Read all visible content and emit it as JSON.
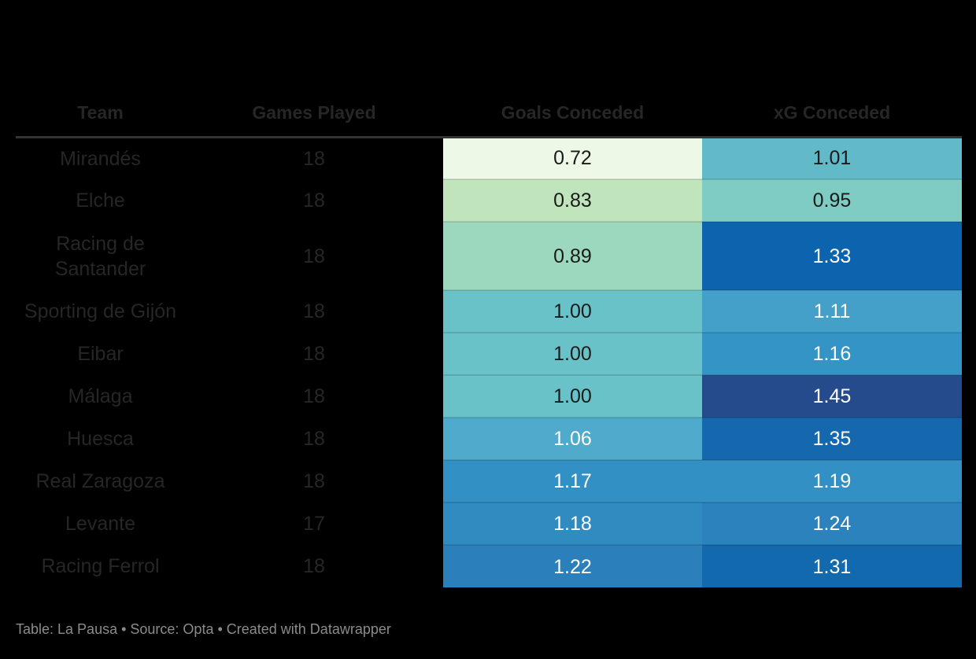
{
  "chart_data": {
    "type": "table",
    "title": "",
    "columns": [
      "Team",
      "Games Played",
      "Goals Conceded",
      "xG Conceded"
    ],
    "rows": [
      [
        "Mirandés",
        18,
        0.72,
        1.01
      ],
      [
        "Elche",
        18,
        0.83,
        0.95
      ],
      [
        "Racing de Santander",
        18,
        0.89,
        1.33
      ],
      [
        "Sporting de Gijón",
        18,
        1.0,
        1.11
      ],
      [
        "Eibar",
        18,
        1.0,
        1.16
      ],
      [
        "Málaga",
        18,
        1.0,
        1.45
      ],
      [
        "Huesca",
        18,
        1.06,
        1.35
      ],
      [
        "Real Zaragoza",
        18,
        1.17,
        1.19
      ],
      [
        "Levante",
        17,
        1.18,
        1.24
      ],
      [
        "Racing Ferrol",
        18,
        1.22,
        1.31
      ]
    ],
    "heatmap_columns": [
      "Goals Conceded",
      "xG Conceded"
    ],
    "layout_hints": "heatmap-colored table, green = low values, dark blue = high values; dark page background",
    "footer": "Table: La Pausa • Source: Opta • Created with Datawrapper"
  },
  "header": {
    "team": "Team",
    "games_played": "Games Played",
    "goals_conceded": "Goals Conceded",
    "xg_conceded": "xG Conceded"
  },
  "rows": [
    {
      "team": "Mirandés",
      "gp": "18",
      "goals": {
        "v": "0.72",
        "bg": "#edf8e6",
        "fg": "#1a1a1a"
      },
      "xg": {
        "v": "1.01",
        "bg": "#62b9c7",
        "fg": "#1a1a1a"
      }
    },
    {
      "team": "Elche",
      "gp": "18",
      "goals": {
        "v": "0.83",
        "bg": "#c0e5bc",
        "fg": "#1a1a1a"
      },
      "xg": {
        "v": "0.95",
        "bg": "#7eccc4",
        "fg": "#1a1a1a"
      }
    },
    {
      "team": "Racing de Santander",
      "gp": "18",
      "goals": {
        "v": "0.89",
        "bg": "#9cd8bd",
        "fg": "#1a1a1a"
      },
      "xg": {
        "v": "1.33",
        "bg": "#0b64ad",
        "fg": "#ffffff"
      }
    },
    {
      "team": "Sporting de Gijón",
      "gp": "18",
      "goals": {
        "v": "1.00",
        "bg": "#68c2c7",
        "fg": "#1a1a1a"
      },
      "xg": {
        "v": "1.11",
        "bg": "#449fc9",
        "fg": "#ffffff"
      }
    },
    {
      "team": "Eibar",
      "gp": "18",
      "goals": {
        "v": "1.00",
        "bg": "#68c2c7",
        "fg": "#1a1a1a"
      },
      "xg": {
        "v": "1.16",
        "bg": "#3594c6",
        "fg": "#ffffff"
      }
    },
    {
      "team": "Málaga",
      "gp": "18",
      "goals": {
        "v": "1.00",
        "bg": "#68c2c7",
        "fg": "#1a1a1a"
      },
      "xg": {
        "v": "1.45",
        "bg": "#264b8c",
        "fg": "#ffffff"
      }
    },
    {
      "team": "Huesca",
      "gp": "18",
      "goals": {
        "v": "1.06",
        "bg": "#4faacb",
        "fg": "#ffffff"
      },
      "xg": {
        "v": "1.35",
        "bg": "#1567ae",
        "fg": "#ffffff"
      }
    },
    {
      "team": "Real Zaragoza",
      "gp": "18",
      "goals": {
        "v": "1.17",
        "bg": "#3390c4",
        "fg": "#ffffff"
      },
      "xg": {
        "v": "1.19",
        "bg": "#3390c4",
        "fg": "#ffffff"
      }
    },
    {
      "team": "Levante",
      "gp": "17",
      "goals": {
        "v": "1.18",
        "bg": "#308bc1",
        "fg": "#ffffff"
      },
      "xg": {
        "v": "1.24",
        "bg": "#2c82bc",
        "fg": "#ffffff"
      }
    },
    {
      "team": "Racing Ferrol",
      "gp": "18",
      "goals": {
        "v": "1.22",
        "bg": "#2b80bb",
        "fg": "#ffffff"
      },
      "xg": {
        "v": "1.31",
        "bg": "#1269ae",
        "fg": "#ffffff"
      }
    }
  ],
  "footer": {
    "text": "Table: La Pausa • Source: Opta • Created with Datawrapper"
  },
  "colors": {
    "background": "#000000",
    "header_text": "#262626",
    "meta_text": "#262626",
    "header_rule": "#333333",
    "footer_text": "#8b8b8b"
  }
}
